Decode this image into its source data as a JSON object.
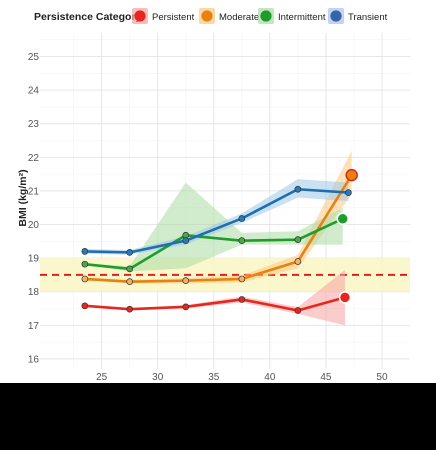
{
  "chart_data": {
    "type": "line",
    "title": "",
    "xlabel": "",
    "ylabel": "BMI (kg/m²)",
    "xlim": [
      19.5,
      52.5
    ],
    "ylim": [
      15.7,
      25.7
    ],
    "xticks": [
      25,
      30,
      35,
      40,
      45,
      50
    ],
    "yticks": [
      16,
      17,
      18,
      19,
      20,
      21,
      22,
      23,
      24,
      25
    ],
    "grid": true,
    "legend": {
      "title": "Persistence Category",
      "position": "top"
    },
    "reference_band": {
      "ymin": 18.0,
      "ymax": 19.0,
      "color": "#fbf6c6"
    },
    "reference_line": {
      "y": 18.5,
      "color": "#e0201b",
      "style": "dashed"
    },
    "series": [
      {
        "name": "Persistent",
        "color": "#e8261e",
        "band_color": "#f5a3a3",
        "x": [
          23.5,
          27.5,
          32.5,
          37.5,
          42.5
        ],
        "y": [
          17.58,
          17.48,
          17.55,
          17.77,
          17.44
        ],
        "lower": [
          17.58,
          17.48,
          17.5,
          17.68,
          17.34
        ],
        "upper": [
          17.58,
          17.48,
          17.6,
          17.86,
          17.54
        ],
        "end_x": 46.7,
        "end_y": 17.83,
        "band_tail": {
          "x": 46.7,
          "lower": 17.0,
          "upper": 18.65
        }
      },
      {
        "name": "Moderate",
        "color": "#e8820e",
        "band_color": "#fbc882",
        "x": [
          23.5,
          27.5,
          32.5,
          37.5,
          42.5
        ],
        "y": [
          18.38,
          18.3,
          18.33,
          18.38,
          18.9
        ],
        "lower": [
          18.33,
          18.25,
          18.25,
          18.28,
          18.7
        ],
        "upper": [
          18.43,
          18.35,
          18.41,
          18.48,
          19.1
        ],
        "end_x": 47.3,
        "end_y": 21.47,
        "band_tail": {
          "x": 47.3,
          "lower": 20.9,
          "upper": 22.2
        }
      },
      {
        "name": "Intermittent",
        "color": "#1f9c2c",
        "band_color": "#aadca4",
        "x": [
          23.5,
          27.5,
          32.5,
          37.5,
          42.5
        ],
        "y": [
          18.82,
          18.68,
          19.68,
          19.52,
          19.55
        ],
        "lower": [
          18.8,
          18.6,
          18.7,
          19.4,
          19.4
        ],
        "upper": [
          18.84,
          18.76,
          21.25,
          19.75,
          19.8
        ],
        "end_x": 46.5,
        "end_y": 20.17,
        "band_tail": {
          "x": 46.5,
          "lower": 19.4,
          "upper": 20.5
        }
      },
      {
        "name": "Transient",
        "color": "#1f6fae",
        "band_color": "#9cc8e8",
        "x": [
          23.5,
          27.5,
          32.5,
          37.5,
          42.5,
          47.0
        ],
        "y": [
          19.2,
          19.17,
          19.52,
          20.18,
          21.05,
          20.95
        ],
        "lower": [
          19.13,
          19.1,
          19.4,
          20.05,
          20.8,
          20.7
        ],
        "upper": [
          19.27,
          19.24,
          19.65,
          20.33,
          21.35,
          21.25
        ],
        "end_x": null,
        "end_y": null,
        "band_tail": null
      }
    ]
  }
}
